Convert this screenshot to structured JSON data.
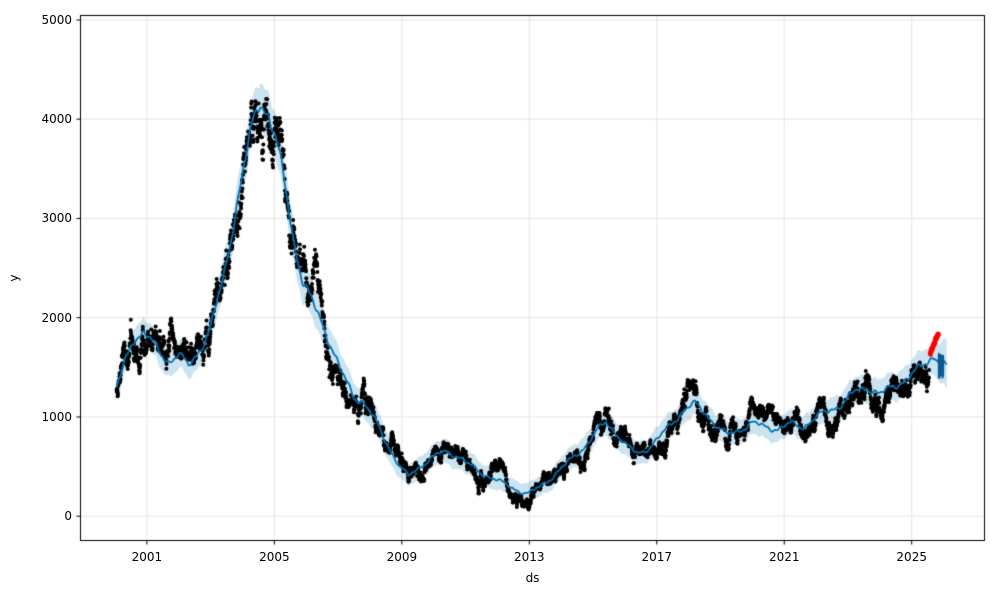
{
  "chart_data": {
    "type": "scatter",
    "title": "",
    "xlabel": "ds",
    "ylabel": "y",
    "xlim": [
      1998.9,
      2027.3
    ],
    "ylim": [
      -250,
      5050
    ],
    "x_ticks": [
      2001,
      2005,
      2009,
      2013,
      2017,
      2021,
      2025
    ],
    "y_ticks": [
      0,
      1000,
      2000,
      3000,
      4000,
      5000
    ],
    "grid": true,
    "legend": null,
    "colors": {
      "observations": "#000000",
      "forecast_line": "#0072B2",
      "uncertainty_band": "rgba(0,114,178,0.2)",
      "future_points": "#ff0000",
      "tail": "#0a5a94",
      "grid": "#e6e6e6",
      "spine": "#000000"
    },
    "trend": {
      "x": [
        2000.05,
        2000.3,
        2000.6,
        2000.9,
        2001.1,
        2001.4,
        2001.7,
        2002.0,
        2002.3,
        2002.7,
        2003.0,
        2003.4,
        2003.8,
        2004.1,
        2004.35,
        2004.55,
        2004.8,
        2005.0,
        2005.3,
        2005.6,
        2005.9,
        2006.2,
        2006.5,
        2006.8,
        2007.1,
        2007.5,
        2007.8,
        2008.1,
        2008.5,
        2008.9,
        2009.2,
        2009.5,
        2009.8,
        2010.1,
        2010.4,
        2010.8,
        2011.1,
        2011.5,
        2011.9,
        2012.3,
        2012.7,
        2013.0,
        2013.3,
        2013.7,
        2014.0,
        2014.4,
        2014.8,
        2015.1,
        2015.4,
        2015.7,
        2016.0,
        2016.4,
        2016.8,
        2017.1,
        2017.5,
        2017.9,
        2018.2,
        2018.5,
        2018.9,
        2019.2,
        2019.6,
        2020.0,
        2020.4,
        2020.8,
        2021.2,
        2021.6,
        2022.0,
        2022.4,
        2022.8,
        2023.2,
        2023.6,
        2024.0,
        2024.4,
        2024.8,
        2025.1,
        2025.4,
        2025.7,
        2025.9,
        2026.1
      ],
      "yhat": [
        1280,
        1550,
        1800,
        1850,
        1780,
        1650,
        1560,
        1630,
        1510,
        1700,
        1900,
        2400,
        3100,
        3600,
        4000,
        4200,
        4050,
        3850,
        3400,
        2800,
        2350,
        2150,
        1950,
        1700,
        1450,
        1200,
        1150,
        1000,
        750,
        520,
        400,
        480,
        560,
        620,
        650,
        600,
        520,
        430,
        380,
        310,
        250,
        230,
        290,
        390,
        480,
        600,
        720,
        850,
        950,
        850,
        720,
        630,
        700,
        800,
        950,
        1080,
        1130,
        1050,
        900,
        820,
        870,
        940,
        900,
        880,
        930,
        900,
        1000,
        1060,
        1130,
        1250,
        1300,
        1230,
        1300,
        1380,
        1450,
        1530,
        1620,
        1560,
        1500
      ],
      "half": [
        130,
        130,
        140,
        140,
        140,
        140,
        140,
        140,
        140,
        150,
        160,
        180,
        200,
        220,
        230,
        240,
        240,
        230,
        220,
        210,
        200,
        190,
        180,
        170,
        160,
        150,
        150,
        140,
        130,
        120,
        110,
        110,
        115,
        120,
        120,
        120,
        115,
        110,
        105,
        100,
        100,
        100,
        100,
        105,
        110,
        115,
        120,
        125,
        130,
        125,
        120,
        115,
        120,
        120,
        125,
        130,
        130,
        130,
        125,
        120,
        120,
        125,
        120,
        120,
        125,
        120,
        125,
        125,
        130,
        130,
        135,
        135,
        140,
        140,
        145,
        150,
        160,
        200,
        250
      ]
    },
    "seasonality": {
      "amps": [
        28,
        16,
        10
      ],
      "freqs": [
        1,
        2.3,
        5.1
      ],
      "phases": [
        0.5,
        2.1,
        4.4
      ],
      "base_mult": 0.4,
      "value_div": 2500
    },
    "observations": {
      "x_start": 2000.05,
      "x_end": 2025.55,
      "step": 0.006,
      "noise_base": 45,
      "noise_scale": 0.05,
      "ar": 0.96,
      "innov": 0.28,
      "seed": 20240613,
      "dot_radius": 2
    },
    "bursts": [
      [
        2006.3,
        0.15,
        450
      ],
      [
        2010.35,
        0.2,
        80
      ],
      [
        2012.9,
        0.2,
        -80
      ],
      [
        2015.45,
        0.15,
        100
      ],
      [
        2018.25,
        0.15,
        120
      ],
      [
        2021.6,
        0.2,
        -110
      ],
      [
        2023.5,
        0.2,
        100
      ],
      [
        2024.05,
        0.25,
        -180
      ]
    ],
    "future_points": {
      "x_start": 2025.58,
      "x_end": 2025.84,
      "count": 42,
      "y_start": 1640,
      "y_end": 1850,
      "jitter": 22,
      "dot_radius": 2.3
    },
    "forecast_tail": {
      "x_start": 2025.84,
      "x_end": 2026.0,
      "step": 0.004,
      "y_min": 1380,
      "y_max": 1650
    },
    "line_range": [
      2000.05,
      2026.1
    ],
    "band_range": [
      2000.05,
      2026.1
    ]
  }
}
